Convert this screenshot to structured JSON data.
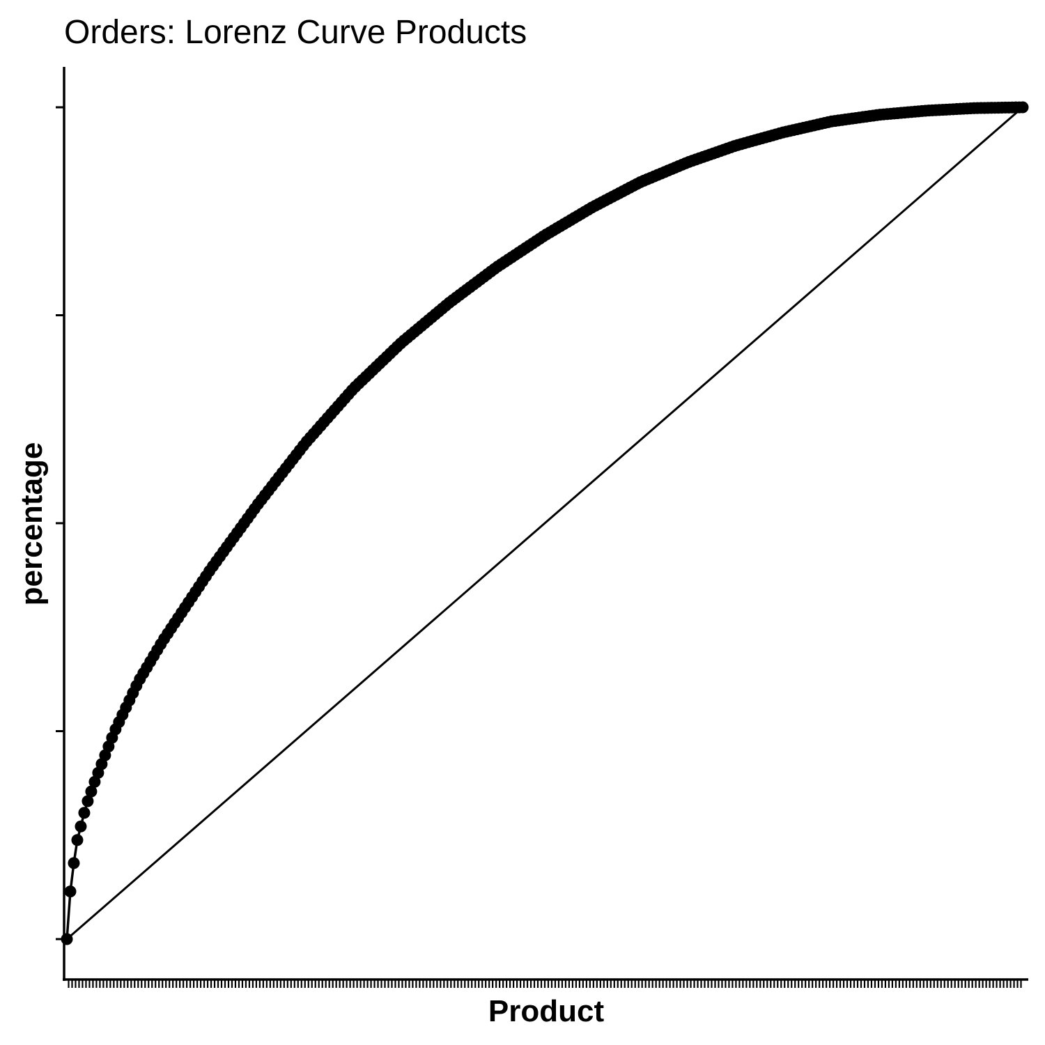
{
  "chart_data": {
    "type": "line",
    "title": "Orders: Lorenz Curve Products",
    "xlabel": "Product",
    "ylabel": "percentage",
    "x_range": [
      0,
      1
    ],
    "ylim": [
      0,
      1
    ],
    "y_tick_values": [
      0,
      0.25,
      0.5,
      0.75,
      1
    ],
    "n_products": 275,
    "x_tick_count": 275,
    "tick_labels_shown": false,
    "grid": false,
    "legend": "none",
    "curve_color": "#000000",
    "series": [
      {
        "x": [
          0,
          0.004,
          0.01,
          0.02,
          0.03,
          0.05,
          0.075,
          0.1,
          0.15,
          0.2,
          0.25,
          0.3,
          0.35,
          0.4,
          0.45,
          0.5,
          0.55,
          0.6,
          0.65,
          0.7,
          0.75,
          0.8,
          0.85,
          0.9,
          0.95,
          1
        ],
        "y": [
          0,
          0.063,
          0.115,
          0.16,
          0.192,
          0.25,
          0.31,
          0.358,
          0.444,
          0.523,
          0.597,
          0.662,
          0.717,
          0.765,
          0.808,
          0.846,
          0.88,
          0.91,
          0.934,
          0.954,
          0.97,
          0.983,
          0.991,
          0.996,
          0.999,
          1
        ]
      },
      {
        "x": [
          0,
          1
        ],
        "y": [
          0,
          1
        ]
      }
    ]
  }
}
